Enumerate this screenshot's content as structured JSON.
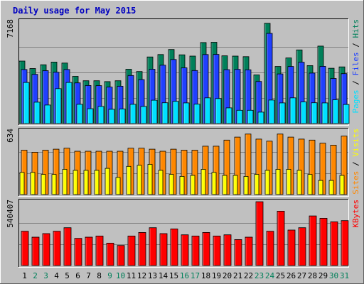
{
  "chart_data": {
    "type": "bar",
    "title": "Daily usage for May 2015",
    "categories": [
      "1",
      "2",
      "3",
      "4",
      "5",
      "6",
      "7",
      "8",
      "9",
      "10",
      "11",
      "12",
      "13",
      "14",
      "15",
      "16",
      "17",
      "18",
      "19",
      "20",
      "21",
      "22",
      "23",
      "24",
      "25",
      "26",
      "27",
      "28",
      "29",
      "30",
      "31"
    ],
    "weekend_days": [
      "2",
      "3",
      "9",
      "10",
      "16",
      "17",
      "23",
      "24",
      "30",
      "31"
    ],
    "colors": {
      "background": "#c0c0c0",
      "plot_bg": "#c0c0c0",
      "title": "#0000c0",
      "pages": "#00e0ff",
      "files": "#2040ff",
      "hits": "#00805a",
      "visits": "#ffff00",
      "sites": "#ff8800",
      "kbytes": "#ff0000",
      "weekend_tick": "#00805a",
      "weekday_tick": "#000000"
    },
    "panels": [
      {
        "name": "hits-files-pages",
        "ymax_label": "7168",
        "ymax": 7168,
        "side_labels": [
          {
            "text": "Pages",
            "color": "#00e0ff"
          },
          {
            "text": " / ",
            "color": "#000000"
          },
          {
            "text": "Files",
            "color": "#2040ff"
          },
          {
            "text": " / ",
            "color": "#000000"
          },
          {
            "text": "Hits",
            "color": "#00805a"
          }
        ],
        "series": [
          {
            "name": "Hits",
            "values": [
              4380,
              3860,
              4120,
              4310,
              4240,
              3310,
              3000,
              3000,
              2940,
              3000,
              3810,
              3650,
              4670,
              4840,
              5190,
              4820,
              4730,
              5680,
              5700,
              4750,
              4730,
              4690,
              3410,
              7030,
              4000,
              4600,
              5160,
              4060,
              5430,
              3880,
              3970
            ]
          },
          {
            "name": "Files",
            "values": [
              3790,
              3450,
              3710,
              3600,
              3790,
              2850,
              2670,
              2660,
              2560,
              2620,
              3370,
              3080,
              3810,
              4090,
              4490,
              3910,
              3720,
              4840,
              4850,
              3780,
              3800,
              3770,
              2950,
              6320,
              3480,
              4000,
              4300,
              3540,
              4010,
              3160,
              3500
            ]
          },
          {
            "name": "Pages",
            "values": [
              2880,
              1500,
              1300,
              2450,
              2880,
              1350,
              1040,
              1200,
              1000,
              1020,
              1350,
              1200,
              1640,
              1460,
              1560,
              1450,
              1360,
              1800,
              1750,
              1100,
              930,
              930,
              800,
              1650,
              1450,
              1800,
              1520,
              1460,
              1450,
              1670,
              1340
            ]
          }
        ]
      },
      {
        "name": "sites-visits",
        "ymax_label": "634",
        "ymax": 634,
        "side_labels": [
          {
            "text": "Sites",
            "color": "#ff8800"
          },
          {
            "text": " / ",
            "color": "#000000"
          },
          {
            "text": "Visits",
            "color": "#ffff00"
          }
        ],
        "series": [
          {
            "name": "Sites",
            "values": [
              440,
              420,
              440,
              450,
              460,
              430,
              430,
              430,
              430,
              430,
              460,
              460,
              450,
              430,
              450,
              440,
              440,
              480,
              480,
              540,
              570,
              600,
              550,
              530,
              600,
              570,
              550,
              540,
              510,
              490,
              580
            ]
          },
          {
            "name": "Visits",
            "values": [
              220,
              220,
              200,
              200,
              250,
              240,
              240,
              240,
              260,
              170,
              280,
              290,
              300,
              240,
              200,
              180,
              190,
              250,
              220,
              190,
              190,
              180,
              200,
              240,
              250,
              250,
              240,
              200,
              140,
              140,
              190
            ]
          }
        ]
      },
      {
        "name": "kbytes",
        "ymax_label": "540407",
        "ymax": 540407,
        "side_labels": [
          {
            "text": "KBytes",
            "color": "#ff0000"
          }
        ],
        "series": [
          {
            "name": "KBytes",
            "values": [
              290000,
              240000,
              270000,
              290000,
              320000,
              230000,
              240000,
              250000,
              190000,
              170000,
              250000,
              280000,
              320000,
              270000,
              310000,
              260000,
              250000,
              280000,
              250000,
              260000,
              220000,
              240000,
              540000,
              290000,
              460000,
              300000,
              320000,
              420000,
              400000,
              370000,
              380000
            ]
          }
        ]
      }
    ]
  }
}
